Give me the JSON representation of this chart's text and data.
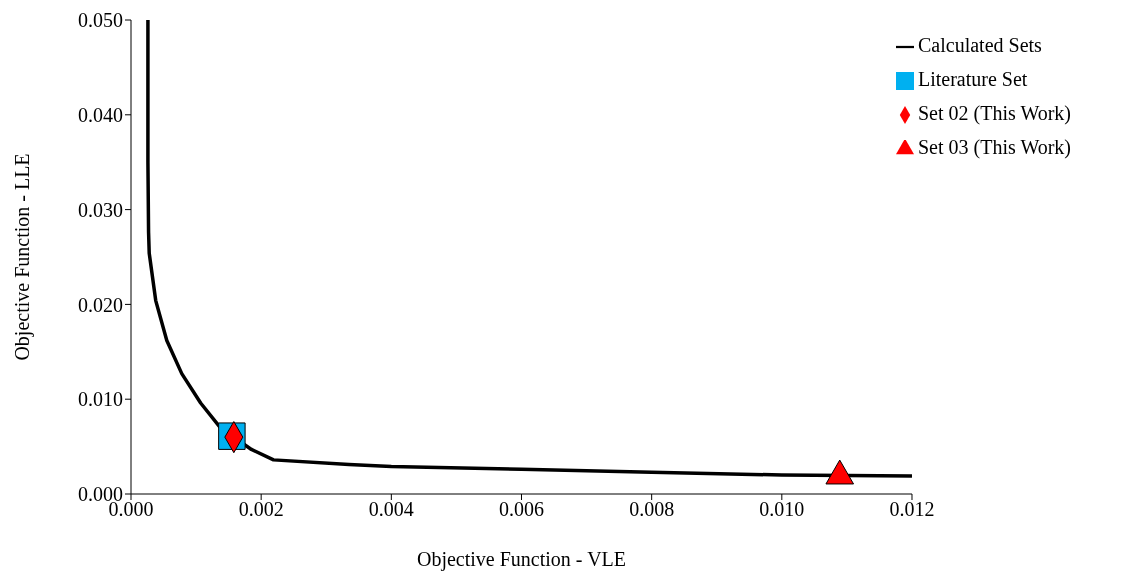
{
  "chart_data": {
    "type": "line",
    "xlabel": "Objective Function - VLE",
    "ylabel": "Objective Function - LLE",
    "xlim": [
      0,
      0.012
    ],
    "ylim": [
      0,
      0.05
    ],
    "xticks": [
      {
        "value": 0,
        "label": "0.000"
      },
      {
        "value": 0.002,
        "label": "0.002"
      },
      {
        "value": 0.004,
        "label": "0.004"
      },
      {
        "value": 0.006,
        "label": "0.006"
      },
      {
        "value": 0.008,
        "label": "0.008"
      },
      {
        "value": 0.01,
        "label": "0.010"
      },
      {
        "value": 0.012,
        "label": "0.012"
      }
    ],
    "yticks": [
      {
        "value": 0,
        "label": "0.000"
      },
      {
        "value": 0.01,
        "label": "0.010"
      },
      {
        "value": 0.02,
        "label": "0.020"
      },
      {
        "value": 0.03,
        "label": "0.030"
      },
      {
        "value": 0.04,
        "label": "0.040"
      },
      {
        "value": 0.05,
        "label": "0.050"
      }
    ],
    "grid": false,
    "legend": "top right",
    "series": [
      {
        "name": "Calculated Sets",
        "marker": "none",
        "color": "#000000",
        "x": [
          0.00026,
          0.00026,
          0.00027,
          0.00028,
          0.00038,
          0.00055,
          0.00078,
          0.00107,
          0.00136,
          0.00156,
          0.00185,
          0.00219,
          0.00335,
          0.004,
          0.006,
          0.008,
          0.01,
          0.012
        ],
        "values": [
          0.05,
          0.035,
          0.0276,
          0.0254,
          0.0204,
          0.0162,
          0.0127,
          0.0096,
          0.0071,
          0.0061,
          0.0047,
          0.0036,
          0.0031,
          0.0029,
          0.0026,
          0.0023,
          0.002,
          0.0019
        ]
      },
      {
        "name": "Literature Set",
        "type": "scatter",
        "marker": "square",
        "color": "#00b0f0",
        "x": [
          0.00155
        ],
        "values": [
          0.0061
        ]
      },
      {
        "name": "Set 02 (This Work)",
        "type": "scatter",
        "marker": "diamond",
        "color": "#ff0000",
        "x": [
          0.00158
        ],
        "values": [
          0.006
        ]
      },
      {
        "name": "Set 03 (This Work)",
        "type": "scatter",
        "marker": "triangle",
        "color": "#ff0000",
        "x": [
          0.01089
        ],
        "values": [
          0.0019
        ]
      }
    ]
  }
}
